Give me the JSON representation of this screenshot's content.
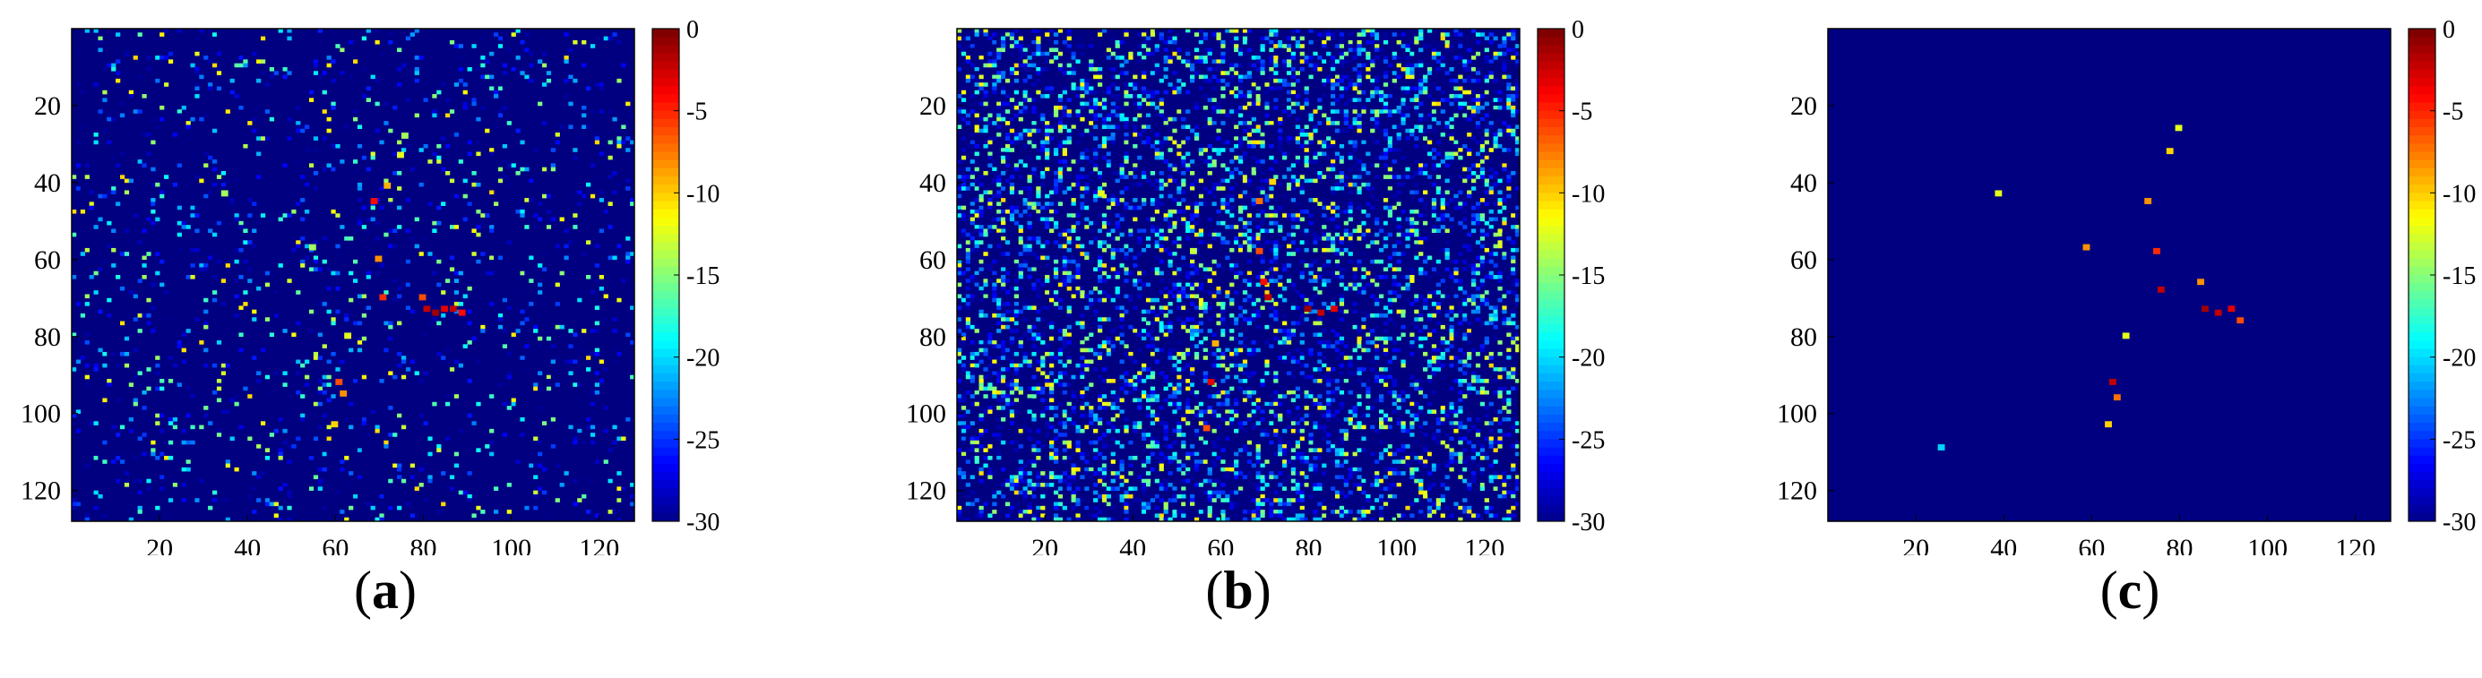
{
  "chart_data": [
    {
      "type": "heatmap",
      "panel_label": "a",
      "x_ticks": [
        20,
        40,
        60,
        80,
        100,
        120
      ],
      "y_ticks": [
        20,
        40,
        60,
        80,
        100,
        120
      ],
      "xlim": [
        0,
        128
      ],
      "ylim": [
        0,
        128
      ],
      "colorbar_ticks": [
        "0",
        "-5",
        "-10",
        "-15",
        "-20",
        "-25",
        "-30"
      ],
      "colorbar_range": [
        -30,
        0
      ],
      "colormap": "jet",
      "background_level": -30,
      "noise_density": 0.1,
      "bright_points": [
        {
          "x": 81,
          "y": 73,
          "value": -2
        },
        {
          "x": 83,
          "y": 74,
          "value": -1
        },
        {
          "x": 85,
          "y": 73,
          "value": -3
        },
        {
          "x": 87,
          "y": 73,
          "value": -2
        },
        {
          "x": 89,
          "y": 74,
          "value": -4
        },
        {
          "x": 80,
          "y": 70,
          "value": -6
        },
        {
          "x": 71,
          "y": 70,
          "value": -5
        },
        {
          "x": 70,
          "y": 60,
          "value": -8
        },
        {
          "x": 69,
          "y": 45,
          "value": -4
        },
        {
          "x": 72,
          "y": 41,
          "value": -9
        },
        {
          "x": 75,
          "y": 33,
          "value": -12
        },
        {
          "x": 76,
          "y": 28,
          "value": -14
        },
        {
          "x": 61,
          "y": 92,
          "value": -6
        },
        {
          "x": 62,
          "y": 95,
          "value": -8
        },
        {
          "x": 60,
          "y": 103,
          "value": -10
        },
        {
          "x": 63,
          "y": 80,
          "value": -12
        },
        {
          "x": 55,
          "y": 57,
          "value": -14
        },
        {
          "x": 35,
          "y": 43,
          "value": -14
        }
      ]
    },
    {
      "type": "heatmap",
      "panel_label": "b",
      "x_ticks": [
        20,
        40,
        60,
        80,
        100,
        120
      ],
      "y_ticks": [
        20,
        40,
        60,
        80,
        100,
        120
      ],
      "xlim": [
        0,
        128
      ],
      "ylim": [
        0,
        128
      ],
      "colorbar_ticks": [
        "0",
        "-5",
        "-10",
        "-15",
        "-20",
        "-25",
        "-30"
      ],
      "colorbar_range": [
        -30,
        0
      ],
      "colormap": "jet",
      "background_level": -30,
      "noise_density": 0.4,
      "bright_points": [
        {
          "x": 80,
          "y": 73,
          "value": -1
        },
        {
          "x": 83,
          "y": 74,
          "value": -2
        },
        {
          "x": 86,
          "y": 73,
          "value": -3
        },
        {
          "x": 71,
          "y": 70,
          "value": -2
        },
        {
          "x": 70,
          "y": 66,
          "value": -4
        },
        {
          "x": 69,
          "y": 58,
          "value": -6
        },
        {
          "x": 69,
          "y": 45,
          "value": -7
        },
        {
          "x": 72,
          "y": 40,
          "value": -10
        },
        {
          "x": 58,
          "y": 92,
          "value": -3
        },
        {
          "x": 57,
          "y": 104,
          "value": -6
        },
        {
          "x": 59,
          "y": 82,
          "value": -9
        },
        {
          "x": 33,
          "y": 43,
          "value": -12
        },
        {
          "x": 54,
          "y": 58,
          "value": -13
        }
      ]
    },
    {
      "type": "heatmap",
      "panel_label": "c",
      "x_ticks": [
        20,
        40,
        60,
        80,
        100,
        120
      ],
      "y_ticks": [
        20,
        40,
        60,
        80,
        100,
        120
      ],
      "xlim": [
        0,
        128
      ],
      "ylim": [
        0,
        128
      ],
      "colorbar_ticks": [
        "0",
        "-5",
        "-10",
        "-15",
        "-20",
        "-25",
        "-30"
      ],
      "colorbar_range": [
        -30,
        0
      ],
      "colormap": "jet",
      "background_level": -30,
      "noise_density": 0.0,
      "bright_points": [
        {
          "x": 86,
          "y": 73,
          "value": -1
        },
        {
          "x": 89,
          "y": 74,
          "value": -2
        },
        {
          "x": 92,
          "y": 73,
          "value": -3
        },
        {
          "x": 94,
          "y": 76,
          "value": -6
        },
        {
          "x": 85,
          "y": 66,
          "value": -8
        },
        {
          "x": 76,
          "y": 68,
          "value": -2
        },
        {
          "x": 75,
          "y": 58,
          "value": -5
        },
        {
          "x": 73,
          "y": 45,
          "value": -8
        },
        {
          "x": 78,
          "y": 32,
          "value": -10
        },
        {
          "x": 80,
          "y": 26,
          "value": -12
        },
        {
          "x": 65,
          "y": 92,
          "value": -2
        },
        {
          "x": 66,
          "y": 96,
          "value": -7
        },
        {
          "x": 64,
          "y": 103,
          "value": -10
        },
        {
          "x": 68,
          "y": 80,
          "value": -12
        },
        {
          "x": 59,
          "y": 57,
          "value": -8
        },
        {
          "x": 39,
          "y": 43,
          "value": -12
        },
        {
          "x": 26,
          "y": 109,
          "value": -20
        }
      ]
    }
  ]
}
